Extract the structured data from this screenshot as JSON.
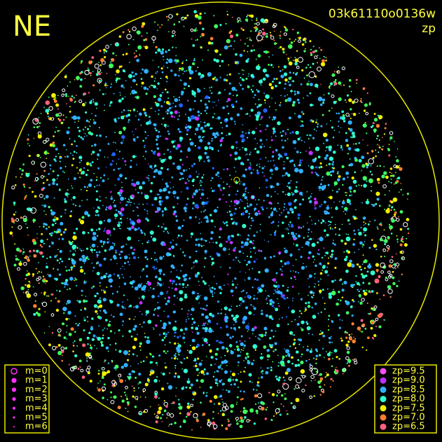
{
  "header": {
    "corner": "NE",
    "frame_id": "03k61110o0136w",
    "mode": "zp"
  },
  "magnitude_legend": {
    "color": "#ff30ff",
    "items": [
      "m=0",
      "m=1",
      "m=2",
      "m=3",
      "m=4",
      "m=5",
      "m=6"
    ]
  },
  "zp_legend": {
    "items": [
      {
        "label": "zp=9.5",
        "color": "#ff50ff"
      },
      {
        "label": "zp=9.0",
        "color": "#c030ff"
      },
      {
        "label": "zp=8.5",
        "color": "#30b0ff"
      },
      {
        "label": "zp=8.0",
        "color": "#30ffd0"
      },
      {
        "label": "zp=7.5",
        "color": "#f0f000"
      },
      {
        "label": "zp=7.0",
        "color": "#ff8030"
      },
      {
        "label": "zp=6.5",
        "color": "#ff6080"
      }
    ]
  }
}
